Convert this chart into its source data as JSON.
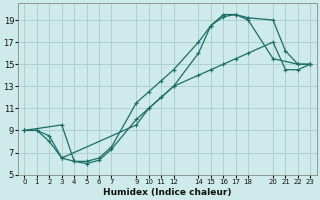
{
  "xlabel": "Humidex (Indice chaleur)",
  "bg_color": "#ceeaea",
  "grid_color": "#aacccc",
  "line_color": "#1a6e66",
  "xlim": [
    -0.5,
    23.5
  ],
  "ylim": [
    5,
    20.5
  ],
  "xticks": [
    0,
    1,
    2,
    3,
    4,
    5,
    6,
    7,
    9,
    10,
    11,
    12,
    14,
    15,
    16,
    17,
    18,
    20,
    21,
    22,
    23
  ],
  "yticks": [
    5,
    7,
    9,
    11,
    13,
    15,
    17,
    19
  ],
  "line1_x": [
    0,
    1,
    2,
    3,
    9,
    10,
    11,
    12,
    14,
    15,
    16,
    17,
    18,
    20,
    21,
    22,
    23
  ],
  "line1_y": [
    9,
    9,
    8.5,
    6.5,
    9.5,
    11,
    12,
    13,
    16,
    18.5,
    19.3,
    19.5,
    19.2,
    19,
    16.2,
    15,
    15
  ],
  "line2_x": [
    0,
    1,
    2,
    3,
    4,
    5,
    6,
    7,
    9,
    10,
    11,
    12,
    14,
    15,
    16,
    17,
    18,
    20,
    22,
    23
  ],
  "line2_y": [
    9,
    9,
    8,
    6.5,
    6.2,
    6.2,
    6.5,
    7.5,
    11.5,
    12.5,
    13.5,
    14.5,
    17,
    18.5,
    19.5,
    19.5,
    19,
    15.5,
    15,
    15
  ],
  "line3_x": [
    0,
    3,
    4,
    5,
    6,
    7,
    9,
    10,
    11,
    12,
    14,
    15,
    16,
    17,
    18,
    20,
    21,
    22,
    23
  ],
  "line3_y": [
    9,
    9.5,
    6.2,
    6.0,
    6.3,
    7.3,
    10,
    11,
    12,
    13,
    14,
    14.5,
    15,
    15.5,
    16,
    17,
    14.5,
    14.5,
    15
  ]
}
